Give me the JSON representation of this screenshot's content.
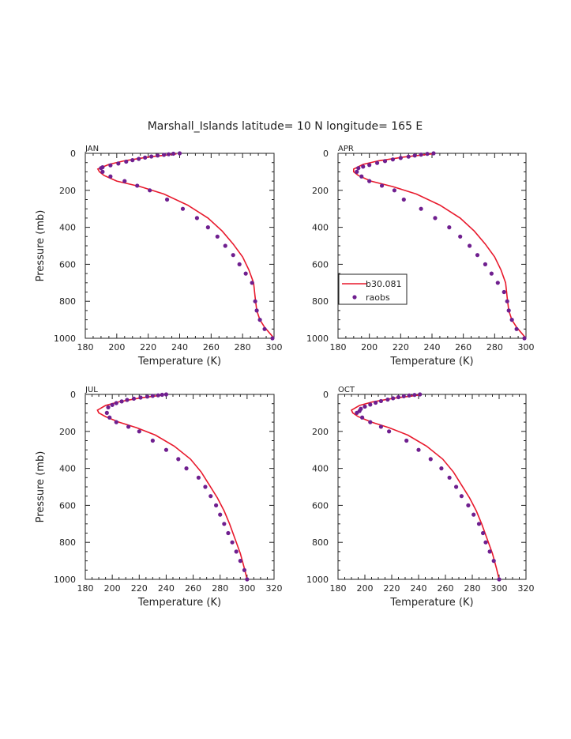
{
  "figure_title": "Marshall_Islands  latitude= 10 N longitude= 165 E",
  "chart_data": [
    {
      "type": "line",
      "panel_label": "JAN",
      "xlabel": "Temperature (K)",
      "ylabel": "Pressure (mb)",
      "xlim": [
        180,
        300
      ],
      "ylim": [
        1000,
        0
      ],
      "xticks": [
        180,
        200,
        220,
        240,
        260,
        280,
        300
      ],
      "yticks": [
        0,
        200,
        400,
        600,
        800,
        1000
      ],
      "series": [
        {
          "kind": "line",
          "color": "#e8192c",
          "x": [
            238,
            220,
            205,
            195,
            188,
            189,
            192,
            200,
            215,
            230,
            245,
            258,
            267,
            274,
            280,
            284,
            287,
            288,
            289,
            291,
            294,
            298,
            300
          ],
          "p": [
            3,
            20,
            40,
            60,
            85,
            100,
            120,
            150,
            180,
            220,
            280,
            350,
            420,
            490,
            560,
            630,
            700,
            780,
            850,
            900,
            940,
            980,
            1000
          ]
        },
        {
          "kind": "points",
          "color": "#6f1f8f",
          "x": [
            240,
            236,
            233,
            230,
            226,
            222,
            218,
            214,
            210,
            206,
            201,
            196,
            191,
            190,
            191,
            196,
            205,
            213,
            221,
            232,
            242,
            251,
            258,
            264,
            269,
            274,
            278,
            282,
            286,
            288,
            289,
            291,
            294,
            299
          ],
          "p": [
            0,
            2,
            5,
            8,
            12,
            17,
            23,
            30,
            37,
            45,
            55,
            65,
            75,
            80,
            100,
            125,
            150,
            175,
            200,
            250,
            300,
            350,
            400,
            450,
            500,
            550,
            600,
            650,
            700,
            800,
            850,
            900,
            950,
            1000
          ]
        }
      ]
    },
    {
      "type": "line",
      "panel_label": "APR",
      "xlabel": "Temperature (K)",
      "ylabel": "",
      "xlim": [
        180,
        300
      ],
      "ylim": [
        1000,
        0
      ],
      "xticks": [
        180,
        200,
        220,
        240,
        260,
        280,
        300
      ],
      "yticks": [
        0,
        200,
        400,
        600,
        800,
        1000
      ],
      "legend": {
        "position": "bottom-left",
        "entries": [
          "b30.081",
          "raobs"
        ]
      },
      "series": [
        {
          "kind": "line",
          "color": "#e8192c",
          "name": "b30.081",
          "x": [
            240,
            222,
            206,
            196,
            190,
            190,
            193,
            201,
            215,
            230,
            245,
            258,
            267,
            274,
            280,
            284,
            287,
            288,
            289,
            291,
            294,
            298,
            300
          ],
          "p": [
            3,
            20,
            40,
            60,
            85,
            100,
            120,
            150,
            180,
            220,
            280,
            350,
            420,
            490,
            560,
            630,
            700,
            780,
            850,
            900,
            940,
            980,
            1000
          ]
        },
        {
          "kind": "points",
          "color": "#6f1f8f",
          "name": "raobs",
          "x": [
            241,
            237,
            233,
            229,
            225,
            220,
            215,
            210,
            205,
            200,
            196,
            193,
            192,
            195,
            200,
            208,
            216,
            222,
            233,
            242,
            251,
            258,
            264,
            269,
            274,
            278,
            282,
            286,
            288,
            289,
            291,
            294,
            299
          ],
          "p": [
            0,
            3,
            7,
            12,
            18,
            25,
            33,
            42,
            52,
            63,
            72,
            80,
            100,
            125,
            150,
            175,
            200,
            250,
            300,
            350,
            400,
            450,
            500,
            550,
            600,
            650,
            700,
            750,
            800,
            850,
            900,
            950,
            1000
          ]
        }
      ]
    },
    {
      "type": "line",
      "panel_label": "JUL",
      "xlabel": "Temperature (K)",
      "ylabel": "Pressure (mb)",
      "xlim": [
        180,
        320
      ],
      "ylim": [
        1000,
        0
      ],
      "xticks": [
        180,
        200,
        220,
        240,
        260,
        280,
        300,
        320
      ],
      "yticks": [
        0,
        200,
        400,
        600,
        800,
        1000
      ],
      "series": [
        {
          "kind": "line",
          "color": "#e8192c",
          "x": [
            238,
            220,
            205,
            195,
            189,
            190,
            195,
            205,
            218,
            232,
            246,
            258,
            266,
            272,
            278,
            283,
            287,
            291,
            295,
            298,
            300
          ],
          "p": [
            3,
            20,
            40,
            60,
            85,
            100,
            120,
            150,
            180,
            220,
            280,
            350,
            420,
            490,
            560,
            630,
            700,
            780,
            860,
            940,
            1000
          ]
        },
        {
          "kind": "points",
          "color": "#6f1f8f",
          "x": [
            240,
            237,
            234,
            230,
            226,
            221,
            216,
            211,
            207,
            203,
            200,
            197,
            196,
            198,
            203,
            212,
            220,
            230,
            240,
            249,
            255,
            264,
            269,
            273,
            277,
            280,
            283,
            286,
            289,
            292,
            295,
            298,
            300
          ],
          "p": [
            0,
            2,
            5,
            8,
            12,
            17,
            23,
            30,
            38,
            47,
            57,
            70,
            100,
            125,
            150,
            175,
            200,
            250,
            300,
            350,
            400,
            450,
            500,
            550,
            600,
            650,
            700,
            750,
            800,
            850,
            900,
            950,
            1000
          ]
        }
      ]
    },
    {
      "type": "line",
      "panel_label": "OCT",
      "xlabel": "Temperature (K)",
      "ylabel": "",
      "xlim": [
        180,
        320
      ],
      "ylim": [
        1000,
        0
      ],
      "xticks": [
        180,
        200,
        220,
        240,
        260,
        280,
        300,
        320
      ],
      "yticks": [
        0,
        200,
        400,
        600,
        800,
        1000
      ],
      "series": [
        {
          "kind": "line",
          "color": "#e8192c",
          "x": [
            241,
            222,
            206,
            196,
            190,
            191,
            195,
            205,
            218,
            232,
            246,
            258,
            266,
            272,
            278,
            283,
            287,
            291,
            295,
            298,
            300
          ],
          "p": [
            3,
            20,
            40,
            60,
            85,
            100,
            120,
            150,
            180,
            220,
            280,
            350,
            420,
            490,
            560,
            630,
            700,
            780,
            860,
            940,
            1000
          ]
        },
        {
          "kind": "points",
          "color": "#6f1f8f",
          "x": [
            241,
            237,
            233,
            229,
            225,
            221,
            217,
            212,
            208,
            204,
            200,
            197,
            196,
            194,
            198,
            204,
            212,
            218,
            231,
            240,
            249,
            257,
            263,
            268,
            272,
            277,
            281,
            285,
            288,
            290,
            293,
            296,
            300
          ],
          "p": [
            0,
            3,
            6,
            10,
            15,
            21,
            28,
            36,
            45,
            55,
            66,
            78,
            90,
            100,
            125,
            150,
            175,
            200,
            250,
            300,
            350,
            400,
            450,
            500,
            550,
            600,
            650,
            700,
            750,
            800,
            850,
            900,
            1000
          ]
        }
      ]
    }
  ]
}
